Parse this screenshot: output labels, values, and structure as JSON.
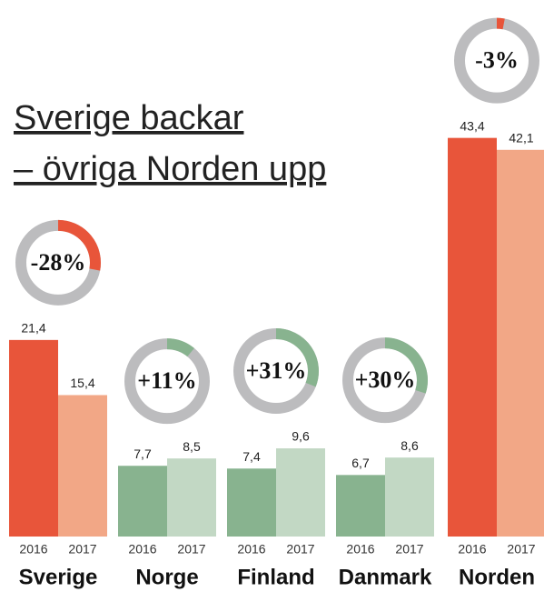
{
  "chart_data": {
    "type": "bar",
    "title_lines": [
      "Sverige backar",
      "– övriga Norden upp"
    ],
    "categories": [
      "Sverige",
      "Norge",
      "Finland",
      "Danmark",
      "Norden"
    ],
    "series": [
      {
        "name": "2016",
        "values": [
          21.4,
          7.7,
          7.4,
          6.7,
          43.4
        ],
        "value_labels": [
          "21,4",
          "7,7",
          "7,4",
          "6,7",
          "43,4"
        ],
        "colors": [
          "#e8553a",
          "#88b38f",
          "#88b38f",
          "#88b38f",
          "#e8553a"
        ]
      },
      {
        "name": "2017",
        "values": [
          15.4,
          8.5,
          9.6,
          8.6,
          42.1
        ],
        "value_labels": [
          "15,4",
          "8,5",
          "9,6",
          "8,6",
          "42,1"
        ],
        "colors": [
          "#f2a786",
          "#c2d8c4",
          "#c2d8c4",
          "#c2d8c4",
          "#f2a786"
        ]
      }
    ],
    "changes": [
      -28,
      11,
      31,
      30,
      -3
    ],
    "change_labels": [
      "-28%",
      "+11%",
      "+31%",
      "+30%",
      "-3%"
    ],
    "change_colors": [
      "#e8553a",
      "#88b38f",
      "#88b38f",
      "#88b38f",
      "#e8553a"
    ],
    "ring_color": "#bcbcbe"
  }
}
